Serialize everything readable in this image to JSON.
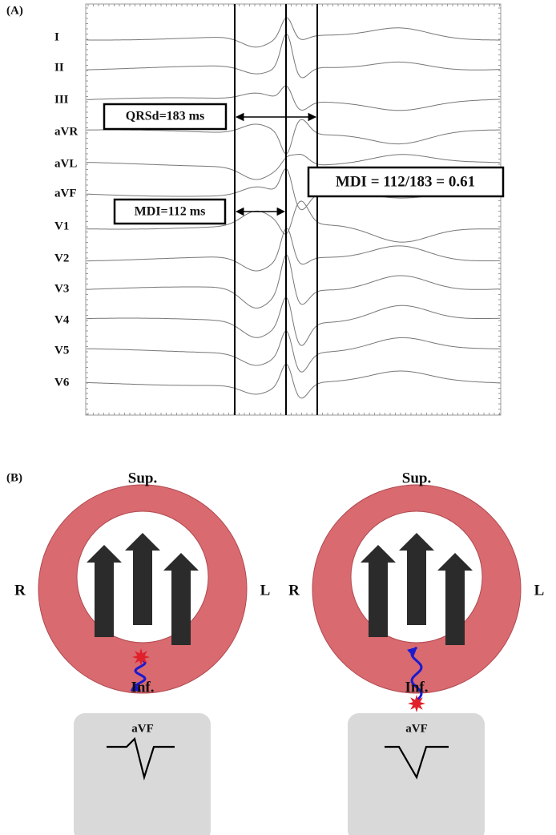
{
  "panel_a": {
    "label": "(A)",
    "leads": [
      "I",
      "II",
      "III",
      "aVR",
      "aVL",
      "aVF",
      "V1",
      "V2",
      "V3",
      "V4",
      "V5",
      "V6"
    ],
    "qrsd_label": "QRSd=183 ms",
    "mdi_label": "MDI=112 ms",
    "ratio_label": "MDI = 112/183 = 0.61"
  },
  "panel_b": {
    "label": "(B)",
    "diagrams": [
      {
        "superior": "Sup.",
        "right": "R",
        "left": "L",
        "inferior": "Inf.",
        "lead": "aVF"
      },
      {
        "superior": "Sup.",
        "right": "R",
        "left": "L",
        "inferior": "Inf.",
        "lead": "aVF"
      }
    ]
  }
}
